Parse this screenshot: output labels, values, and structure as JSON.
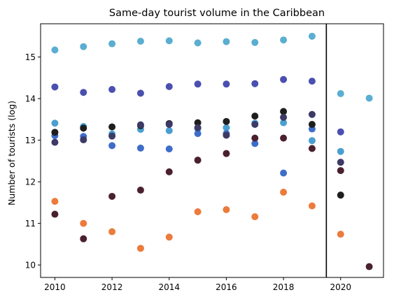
{
  "chart_data": {
    "type": "scatter",
    "title": "Same-day tourist volume in the Caribbean",
    "xlabel": "",
    "ylabel": "Number of tourists (log)",
    "xlim": [
      2009.5,
      2021.5
    ],
    "ylim": [
      9.7,
      15.8
    ],
    "x_ticks": [
      2010,
      2012,
      2014,
      2016,
      2018,
      2020
    ],
    "y_ticks": [
      10,
      11,
      12,
      13,
      14,
      15
    ],
    "grid": false,
    "legend": "none",
    "vertical_line_x": 2019.5,
    "series": [
      {
        "color": "#5aaed1",
        "x": [
          2010,
          2011,
          2012,
          2013,
          2014,
          2015,
          2016,
          2017,
          2018,
          2019,
          2020,
          2021
        ],
        "y": [
          15.17,
          15.25,
          15.32,
          15.38,
          15.39,
          15.34,
          15.37,
          15.35,
          15.41,
          15.5,
          14.12,
          14.01
        ]
      },
      {
        "color": "#4a4fb0",
        "x": [
          2010,
          2011,
          2012,
          2013,
          2014,
          2015,
          2016,
          2017,
          2018,
          2019,
          2020
        ],
        "y": [
          14.28,
          14.15,
          14.22,
          14.13,
          14.29,
          14.35,
          14.35,
          14.36,
          14.46,
          14.42,
          13.2
        ]
      },
      {
        "color": "#4a9fd1",
        "x": [
          2010,
          2011,
          2012,
          2013,
          2014,
          2015,
          2016,
          2017,
          2018,
          2019,
          2020
        ],
        "y": [
          13.41,
          13.33,
          13.15,
          13.26,
          13.23,
          13.28,
          13.3,
          13.41,
          13.42,
          12.99,
          12.73
        ]
      },
      {
        "color": "#3e6dc9",
        "x": [
          2010,
          2011,
          2012,
          2013,
          2014,
          2015,
          2016,
          2017,
          2018,
          2019
        ],
        "y": [
          13.11,
          13.09,
          12.87,
          12.81,
          12.79,
          13.16,
          13.16,
          12.92,
          12.21,
          13.27
        ]
      },
      {
        "color": "#1e1e1e",
        "x": [
          2010,
          2011,
          2012,
          2013,
          2014,
          2015,
          2016,
          2017,
          2018,
          2019,
          2020
        ],
        "y": [
          13.19,
          13.29,
          13.32,
          13.35,
          13.4,
          13.42,
          13.45,
          13.58,
          13.69,
          13.38,
          11.68
        ]
      },
      {
        "color": "#3d3a66",
        "x": [
          2010,
          2011,
          2012,
          2013,
          2014,
          2015,
          2016,
          2017,
          2018,
          2019,
          2020
        ],
        "y": [
          12.95,
          13.01,
          13.1,
          13.37,
          13.38,
          13.3,
          13.12,
          13.38,
          13.55,
          13.62,
          12.47
        ]
      },
      {
        "color": "#4a2030",
        "x": [
          2010,
          2011,
          2012,
          2013,
          2014,
          2015,
          2016,
          2017,
          2018,
          2019,
          2020,
          2021
        ],
        "y": [
          11.22,
          10.63,
          11.65,
          11.8,
          12.24,
          12.52,
          12.68,
          13.05,
          13.05,
          12.8,
          12.27,
          9.96
        ]
      },
      {
        "color": "#ec7b3c",
        "x": [
          2010,
          2011,
          2012,
          2013,
          2014,
          2015,
          2016,
          2017,
          2018,
          2019,
          2020
        ],
        "y": [
          11.53,
          11.0,
          10.8,
          10.4,
          10.67,
          11.28,
          11.33,
          11.16,
          11.75,
          11.42,
          10.74
        ]
      }
    ]
  }
}
